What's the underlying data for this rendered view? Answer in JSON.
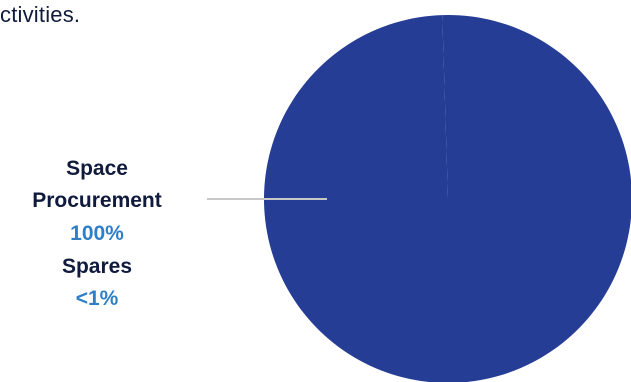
{
  "intro": {
    "text": "ctivities."
  },
  "chart_data": {
    "type": "pie",
    "categories": [
      "Space Procurement",
      "Spares"
    ],
    "values": [
      100,
      0.5
    ],
    "labels": [
      {
        "name_lines": [
          "Space",
          "Procurement"
        ],
        "value_label": "100%"
      },
      {
        "name_lines": [
          "Spares"
        ],
        "value_label": "<1%"
      }
    ],
    "colors": {
      "slice": "#253d94",
      "name_text": "#0f1a3c",
      "value_text": "#2f7fc8",
      "leader": "#c8c8c8"
    }
  }
}
